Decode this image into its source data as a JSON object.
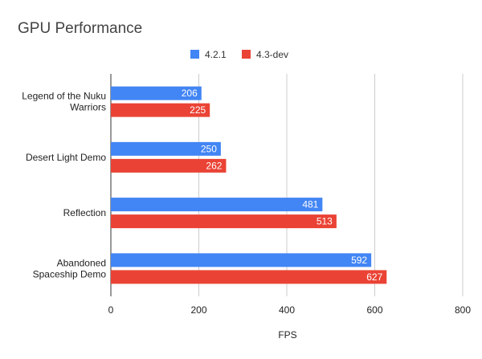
{
  "chart_data": {
    "type": "bar",
    "orientation": "horizontal",
    "title": "GPU Performance",
    "xlabel": "FPS",
    "ylabel": "",
    "xlim": [
      0,
      800
    ],
    "ticks": [
      0,
      200,
      400,
      600,
      800
    ],
    "categories": [
      [
        "Legend of the Nuku",
        "Warriors"
      ],
      [
        "Desert Light Demo"
      ],
      [
        "Reflection"
      ],
      [
        "Abandoned",
        "Spaceship Demo"
      ]
    ],
    "series": [
      {
        "name": "4.2.1",
        "color": "#4285f4",
        "values": [
          206,
          250,
          481,
          592
        ]
      },
      {
        "name": "4.3-dev",
        "color": "#ea4335",
        "values": [
          225,
          262,
          513,
          627
        ]
      }
    ],
    "grid": true,
    "legend_position": "top",
    "data_labels": true
  }
}
